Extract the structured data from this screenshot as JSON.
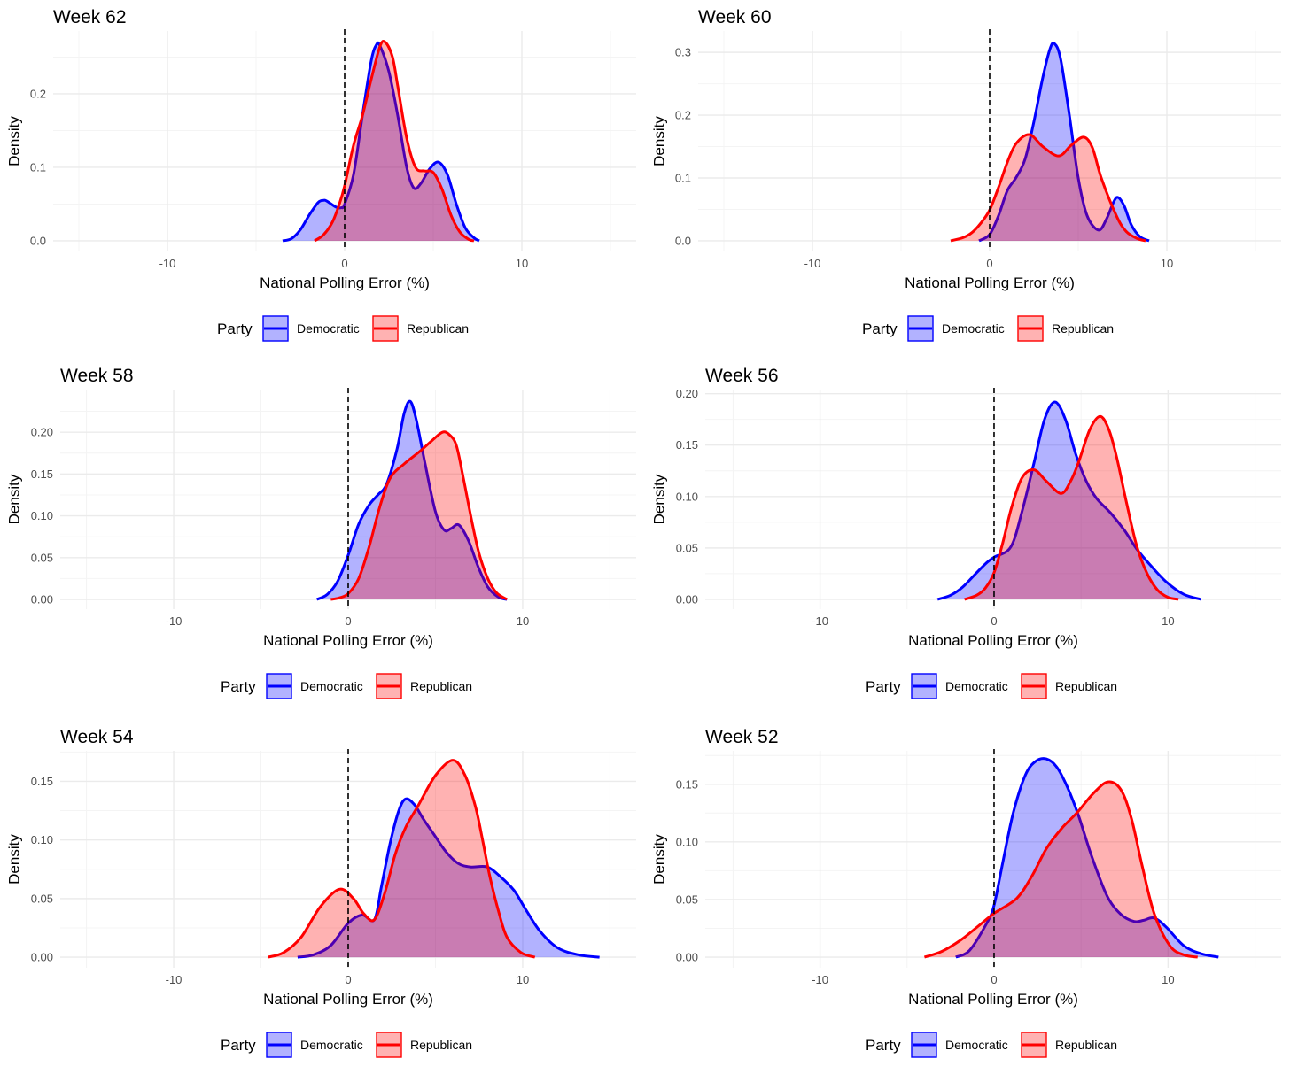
{
  "chart_data": [
    {
      "type": "area",
      "title": "Week 62",
      "xlabel": "National Polling Error (%)",
      "ylabel": "Density",
      "xlim": [
        -16.45,
        16.45
      ],
      "ylim": [
        -0.0145,
        0.2855
      ],
      "xticks": [
        -10,
        0,
        10
      ],
      "yticks": [
        0.0,
        0.1,
        0.2
      ],
      "ytick_labels": [
        "0.0",
        "0.1",
        "0.2"
      ],
      "vline": 0,
      "legend": {
        "title": "Party",
        "position": "bottom",
        "entries": [
          "Democratic",
          "Republican"
        ]
      },
      "series": [
        {
          "name": "Democratic",
          "color": "#0000ff",
          "x": [
            -3.5,
            -3,
            -2.5,
            -2,
            -1.5,
            -1.2,
            -1,
            -0.5,
            -0.2,
            0,
            0.5,
            1,
            1.5,
            1.8,
            2,
            2.5,
            3,
            3.5,
            3.9,
            4.3,
            4.8,
            5.3,
            5.8,
            6.3,
            6.8,
            7.3,
            7.6
          ],
          "y": [
            0,
            0.003,
            0.015,
            0.035,
            0.052,
            0.055,
            0.054,
            0.046,
            0.045,
            0.05,
            0.09,
            0.17,
            0.245,
            0.267,
            0.265,
            0.23,
            0.17,
            0.1,
            0.072,
            0.078,
            0.098,
            0.107,
            0.09,
            0.05,
            0.018,
            0.004,
            0
          ]
        },
        {
          "name": "Republican",
          "color": "#ff0000",
          "x": [
            -1.7,
            -1.2,
            -0.7,
            -0.3,
            0,
            0.5,
            1,
            1.5,
            2,
            2.3,
            2.7,
            3,
            3.5,
            4,
            4.5,
            5,
            5.5,
            6,
            6.5,
            7,
            7.3
          ],
          "y": [
            0,
            0.008,
            0.025,
            0.05,
            0.075,
            0.13,
            0.17,
            0.22,
            0.265,
            0.27,
            0.25,
            0.21,
            0.14,
            0.1,
            0.095,
            0.093,
            0.07,
            0.035,
            0.012,
            0.002,
            0
          ]
        }
      ]
    },
    {
      "type": "area",
      "title": "Week 60",
      "xlabel": "National Polling Error (%)",
      "ylabel": "Density",
      "xlim": [
        -16.45,
        16.45
      ],
      "ylim": [
        -0.017,
        0.334
      ],
      "xticks": [
        -10,
        0,
        10
      ],
      "yticks": [
        0.0,
        0.1,
        0.2,
        0.3
      ],
      "ytick_labels": [
        "0.0",
        "0.1",
        "0.2",
        "0.3"
      ],
      "vline": 0,
      "legend": {
        "title": "Party",
        "position": "bottom",
        "entries": [
          "Democratic",
          "Republican"
        ]
      },
      "series": [
        {
          "name": "Democratic",
          "color": "#0000ff",
          "x": [
            -0.6,
            0,
            0.5,
            1,
            1.5,
            2,
            2.5,
            3,
            3.4,
            3.65,
            4,
            4.5,
            5,
            5.5,
            6.15,
            6.6,
            7,
            7.25,
            7.6,
            8,
            8.5,
            9
          ],
          "y": [
            0,
            0.01,
            0.04,
            0.08,
            0.101,
            0.13,
            0.19,
            0.26,
            0.305,
            0.314,
            0.29,
            0.2,
            0.1,
            0.04,
            0.017,
            0.035,
            0.062,
            0.069,
            0.055,
            0.025,
            0.006,
            0
          ]
        },
        {
          "name": "Republican",
          "color": "#ff0000",
          "x": [
            -2.2,
            -1.5,
            -1,
            -0.5,
            0,
            0.5,
            1,
            1.5,
            2.25,
            3,
            3.9,
            4.6,
            5.3,
            5.8,
            6.3,
            7.15,
            7.7,
            8.3,
            8.8
          ],
          "y": [
            0,
            0.005,
            0.013,
            0.028,
            0.049,
            0.085,
            0.125,
            0.155,
            0.169,
            0.15,
            0.135,
            0.152,
            0.165,
            0.148,
            0.1,
            0.04,
            0.015,
            0.004,
            0
          ]
        }
      ]
    },
    {
      "type": "area",
      "title": "Week 58",
      "xlabel": "National Polling Error (%)",
      "ylabel": "Density",
      "xlim": [
        -16.5,
        16.5
      ],
      "ylim": [
        -0.0116,
        0.251
      ],
      "xticks": [
        -10,
        0,
        10
      ],
      "yticks": [
        0,
        0.05,
        0.1,
        0.15,
        0.2
      ],
      "ytick_labels": [
        "0.00",
        "0.05",
        "0.10",
        "0.15",
        "0.20"
      ],
      "vline": 0,
      "legend": {
        "title": "Party",
        "position": "bottom",
        "entries": [
          "Democratic",
          "Republican"
        ]
      },
      "series": [
        {
          "name": "Democratic",
          "color": "#0000ff",
          "x": [
            -1.8,
            -1.2,
            -0.6,
            0,
            0.6,
            1.2,
            1.7,
            2.2,
            2.8,
            3.2,
            3.55,
            3.9,
            4.4,
            5,
            5.5,
            5.9,
            6.35,
            6.9,
            7.45,
            8,
            8.6,
            9.1
          ],
          "y": [
            0,
            0.006,
            0.022,
            0.053,
            0.09,
            0.113,
            0.125,
            0.138,
            0.18,
            0.222,
            0.237,
            0.215,
            0.163,
            0.105,
            0.083,
            0.085,
            0.089,
            0.07,
            0.039,
            0.015,
            0.003,
            0
          ]
        },
        {
          "name": "Republican",
          "color": "#ff0000",
          "x": [
            -1,
            -0.5,
            0,
            0.6,
            1.2,
            1.8,
            2.4,
            3.2,
            4.1,
            4.8,
            5.4,
            5.8,
            6.2,
            6.6,
            7.1,
            7.5,
            8,
            8.5,
            9.1
          ],
          "y": [
            0,
            0.002,
            0.007,
            0.025,
            0.063,
            0.11,
            0.145,
            0.162,
            0.177,
            0.19,
            0.2,
            0.197,
            0.184,
            0.145,
            0.092,
            0.055,
            0.025,
            0.008,
            0
          ]
        }
      ]
    },
    {
      "type": "area",
      "title": "Week 56",
      "xlabel": "National Polling Error (%)",
      "ylabel": "Density",
      "xlim": [
        -16.6,
        16.5
      ],
      "ylim": [
        -0.0095,
        0.204
      ],
      "xticks": [
        -10,
        0,
        10
      ],
      "yticks": [
        0,
        0.05,
        0.1,
        0.15,
        0.2
      ],
      "ytick_labels": [
        "0.00",
        "0.05",
        "0.10",
        "0.15",
        "0.20"
      ],
      "vline": 0,
      "legend": {
        "title": "Party",
        "position": "bottom",
        "entries": [
          "Democratic",
          "Republican"
        ]
      },
      "series": [
        {
          "name": "Democratic",
          "color": "#0000ff",
          "x": [
            -3.25,
            -2.5,
            -1.8,
            -1,
            -0.4,
            0,
            0.96,
            1.6,
            2.3,
            2.9,
            3.5,
            4.1,
            4.7,
            5.3,
            5.9,
            6.7,
            7.5,
            8.2,
            9,
            9.9,
            10.9,
            11.9
          ],
          "y": [
            0,
            0.004,
            0.012,
            0.026,
            0.036,
            0.041,
            0.051,
            0.085,
            0.133,
            0.175,
            0.192,
            0.175,
            0.141,
            0.115,
            0.098,
            0.084,
            0.067,
            0.049,
            0.033,
            0.017,
            0.005,
            0
          ]
        },
        {
          "name": "Republican",
          "color": "#ff0000",
          "x": [
            -1.7,
            -1,
            -0.5,
            0,
            0.5,
            1,
            1.6,
            2.3,
            3,
            3.85,
            4.4,
            4.85,
            5.5,
            6.1,
            6.6,
            7.05,
            7.6,
            8.2,
            8.8,
            9.4,
            10,
            10.6
          ],
          "y": [
            0,
            0.004,
            0.011,
            0.026,
            0.055,
            0.089,
            0.118,
            0.126,
            0.115,
            0.103,
            0.115,
            0.133,
            0.165,
            0.178,
            0.165,
            0.138,
            0.095,
            0.052,
            0.025,
            0.009,
            0.002,
            0
          ]
        }
      ]
    },
    {
      "type": "area",
      "title": "Week 54",
      "xlabel": "National Polling Error (%)",
      "ylabel": "Density",
      "xlim": [
        -16.5,
        16.5
      ],
      "ylim": [
        -0.009,
        0.176
      ],
      "xticks": [
        -10,
        0,
        10
      ],
      "yticks": [
        0,
        0.05,
        0.1,
        0.15
      ],
      "ytick_labels": [
        "0.00",
        "0.05",
        "0.10",
        "0.15"
      ],
      "vline": 0,
      "legend": {
        "title": "Party",
        "position": "bottom",
        "entries": [
          "Democratic",
          "Republican"
        ]
      },
      "series": [
        {
          "name": "Democratic",
          "color": "#0000ff",
          "x": [
            -2.9,
            -2,
            -1,
            0,
            0.8,
            1.5,
            1.9,
            2.4,
            2.9,
            3.3,
            3.8,
            4.3,
            4.9,
            5.6,
            6.3,
            7,
            7.95,
            8.7,
            9.5,
            10.2,
            11,
            12,
            13.2,
            14.4
          ],
          "y": [
            0,
            0.002,
            0.01,
            0.029,
            0.036,
            0.032,
            0.06,
            0.097,
            0.125,
            0.135,
            0.13,
            0.118,
            0.105,
            0.09,
            0.08,
            0.077,
            0.077,
            0.069,
            0.057,
            0.04,
            0.022,
            0.008,
            0.002,
            0
          ]
        },
        {
          "name": "Republican",
          "color": "#ff0000",
          "x": [
            -4.6,
            -3.7,
            -2.7,
            -1.6,
            -0.5,
            0.3,
            0.9,
            1.5,
            2.1,
            2.7,
            3.3,
            4,
            5,
            6,
            6.7,
            7.3,
            7.7,
            8.1,
            8.6,
            9.1,
            9.9,
            10.7
          ],
          "y": [
            0,
            0.004,
            0.017,
            0.043,
            0.058,
            0.05,
            0.037,
            0.032,
            0.055,
            0.088,
            0.111,
            0.129,
            0.155,
            0.168,
            0.155,
            0.128,
            0.1,
            0.07,
            0.04,
            0.017,
            0.004,
            0
          ]
        }
      ]
    },
    {
      "type": "area",
      "title": "Week 52",
      "xlabel": "National Polling Error (%)",
      "ylabel": "Density",
      "xlim": [
        -16.6,
        16.5
      ],
      "ylim": [
        -0.0092,
        0.179
      ],
      "xticks": [
        -10,
        0,
        10
      ],
      "yticks": [
        0,
        0.05,
        0.1,
        0.15
      ],
      "ytick_labels": [
        "0.00",
        "0.05",
        "0.10",
        "0.15"
      ],
      "vline": 0,
      "legend": {
        "title": "Party",
        "position": "bottom",
        "entries": [
          "Democratic",
          "Republican"
        ]
      },
      "series": [
        {
          "name": "Democratic",
          "color": "#0000ff",
          "x": [
            -2.2,
            -1.4,
            -0.4,
            0,
            0.5,
            1.1,
            1.8,
            2.4,
            3,
            3.6,
            4.2,
            4.85,
            5.6,
            6.5,
            7.3,
            8.05,
            8.6,
            9.2,
            9.9,
            10.9,
            11.9,
            12.9
          ],
          "y": [
            0,
            0.006,
            0.03,
            0.045,
            0.082,
            0.125,
            0.158,
            0.17,
            0.172,
            0.165,
            0.148,
            0.123,
            0.088,
            0.053,
            0.037,
            0.031,
            0.032,
            0.034,
            0.026,
            0.01,
            0.003,
            0
          ]
        },
        {
          "name": "Republican",
          "color": "#ff0000",
          "x": [
            -4,
            -3,
            -1.9,
            -0.9,
            0,
            1.3,
            2.2,
            3,
            3.9,
            4.75,
            5.7,
            6.55,
            7.3,
            7.9,
            8.5,
            9.2,
            10.1,
            10.9,
            11.7
          ],
          "y": [
            0,
            0.005,
            0.015,
            0.027,
            0.038,
            0.051,
            0.071,
            0.094,
            0.112,
            0.125,
            0.142,
            0.152,
            0.145,
            0.12,
            0.08,
            0.038,
            0.01,
            0.002,
            0
          ]
        }
      ]
    }
  ]
}
